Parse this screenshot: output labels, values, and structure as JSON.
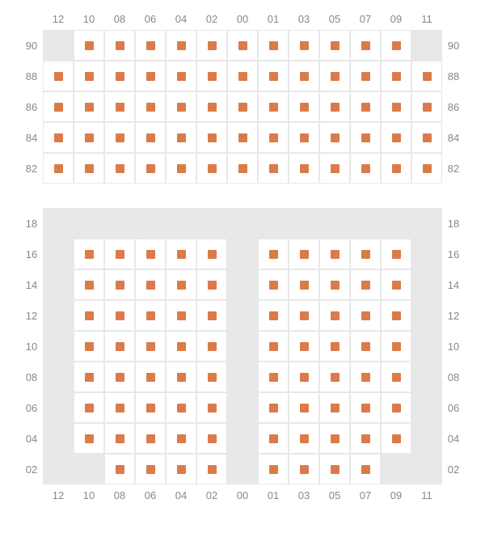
{
  "seat_color": "#db7b4a",
  "empty_cell_color": "#e8e8e8",
  "cell_bg": "#ffffff",
  "border_color": "#e8e8e8",
  "label_color": "#888888",
  "cell_size": 38,
  "marker_size": 11,
  "label_fontsize": 13,
  "sections": [
    {
      "id": "upper",
      "col_labels_top": [
        "12",
        "10",
        "08",
        "06",
        "04",
        "02",
        "00",
        "01",
        "03",
        "05",
        "07",
        "09",
        "11"
      ],
      "row_labels": [
        "90",
        "88",
        "86",
        "84",
        "82"
      ],
      "show_row_labels_left": true,
      "show_row_labels_right": true,
      "grid": [
        [
          0,
          1,
          1,
          1,
          1,
          1,
          1,
          1,
          1,
          1,
          1,
          1,
          0
        ],
        [
          1,
          1,
          1,
          1,
          1,
          1,
          1,
          1,
          1,
          1,
          1,
          1,
          1
        ],
        [
          1,
          1,
          1,
          1,
          1,
          1,
          1,
          1,
          1,
          1,
          1,
          1,
          1
        ],
        [
          1,
          1,
          1,
          1,
          1,
          1,
          1,
          1,
          1,
          1,
          1,
          1,
          1
        ],
        [
          1,
          1,
          1,
          1,
          1,
          1,
          1,
          1,
          1,
          1,
          1,
          1,
          1
        ]
      ]
    },
    {
      "id": "lower",
      "col_labels_bottom": [
        "12",
        "10",
        "08",
        "06",
        "04",
        "02",
        "00",
        "01",
        "03",
        "05",
        "07",
        "09",
        "11"
      ],
      "row_labels": [
        "18",
        "16",
        "14",
        "12",
        "10",
        "08",
        "06",
        "04",
        "02"
      ],
      "show_row_labels_left": true,
      "show_row_labels_right": true,
      "grid": [
        [
          0,
          0,
          0,
          0,
          0,
          0,
          0,
          0,
          0,
          0,
          0,
          0,
          0
        ],
        [
          0,
          1,
          1,
          1,
          1,
          1,
          0,
          1,
          1,
          1,
          1,
          1,
          0
        ],
        [
          0,
          1,
          1,
          1,
          1,
          1,
          0,
          1,
          1,
          1,
          1,
          1,
          0
        ],
        [
          0,
          1,
          1,
          1,
          1,
          1,
          0,
          1,
          1,
          1,
          1,
          1,
          0
        ],
        [
          0,
          1,
          1,
          1,
          1,
          1,
          0,
          1,
          1,
          1,
          1,
          1,
          0
        ],
        [
          0,
          1,
          1,
          1,
          1,
          1,
          0,
          1,
          1,
          1,
          1,
          1,
          0
        ],
        [
          0,
          1,
          1,
          1,
          1,
          1,
          0,
          1,
          1,
          1,
          1,
          1,
          0
        ],
        [
          0,
          1,
          1,
          1,
          1,
          1,
          0,
          1,
          1,
          1,
          1,
          1,
          0
        ],
        [
          0,
          0,
          1,
          1,
          1,
          1,
          0,
          1,
          1,
          1,
          1,
          0,
          0
        ]
      ]
    }
  ]
}
